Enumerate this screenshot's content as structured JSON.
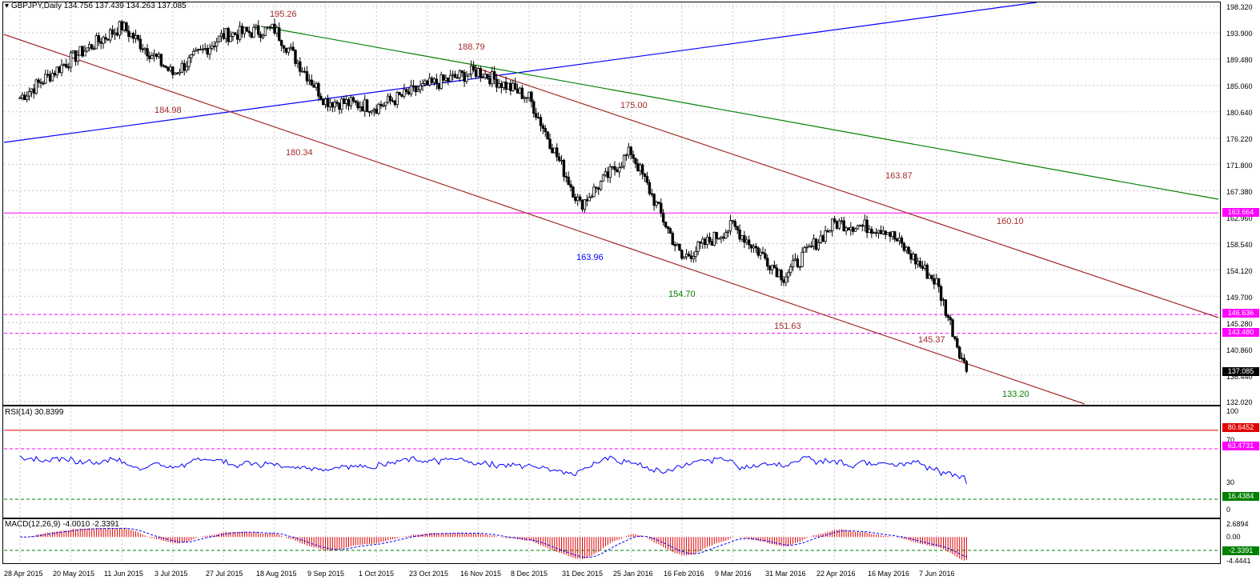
{
  "header": {
    "symbol": "GBPJPY,Daily",
    "ohlc": "134.756 137.439 134.263 137.085"
  },
  "price_axis": {
    "ticks": [
      "198.320",
      "193.900",
      "189.480",
      "185.060",
      "180.640",
      "176.220",
      "171.800",
      "167.380",
      "162.960",
      "158.540",
      "154.120",
      "149.700",
      "145.280",
      "140.860",
      "136.440",
      "132.020"
    ]
  },
  "price_boxes": {
    "resistance": "163.664",
    "level_1": "146.636",
    "level_2": "143.480",
    "last": "137.085"
  },
  "annotations": {
    "a1": "195.26",
    "a2": "188.79",
    "a3": "184.98",
    "a4": "180.34",
    "a5": "175.00",
    "a6": "163.87",
    "a7": "160.10",
    "a8": "163.96",
    "a9": "154.70",
    "a10": "151.63",
    "a11": "145.37",
    "a12": "133.20"
  },
  "rsi": {
    "label": "RSI(14) 30.8399",
    "axis": [
      "100",
      "70",
      "30",
      "0"
    ],
    "box_upper": "80.6452",
    "box_mid": "63.4731",
    "box_lower": "16.4384"
  },
  "macd": {
    "label": "MACD(12,26,9) -4.0010 -2.3391",
    "axis": [
      "2.6894",
      "0.00",
      "-4.4441"
    ],
    "box_signal": "-2.3391"
  },
  "dates": [
    "28 Apr 2015",
    "20 May 2015",
    "11 Jun 2015",
    "3 Jul 2015",
    "27 Jul 2015",
    "18 Aug 2015",
    "9 Sep 2015",
    "1 Oct 2015",
    "23 Oct 2015",
    "16 Nov 2015",
    "8 Dec 2015",
    "31 Dec 2015",
    "25 Jan 2016",
    "16 Feb 2016",
    "9 Mar 2016",
    "31 Mar 2016",
    "22 Apr 2016",
    "16 May 2016",
    "7 Jun 2016"
  ],
  "chart_data": {
    "type": "candlestick",
    "symbol": "GBPJPY",
    "timeframe": "Daily",
    "ylim": [
      132.02,
      198.32
    ],
    "key_levels": [
      163.664,
      146.636,
      143.48
    ],
    "close_path": [
      [
        "28 Apr 2015",
        183.0
      ],
      [
        "20 May 2015",
        189.5
      ],
      [
        "11 Jun 2015",
        195.0
      ],
      [
        "3 Jul 2015",
        187.0
      ],
      [
        "27 Jul 2015",
        193.5
      ],
      [
        "18 Aug 2015",
        194.5
      ],
      [
        "9 Sep 2015",
        182.5
      ],
      [
        "1 Oct 2015",
        181.5
      ],
      [
        "23 Oct 2015",
        185.0
      ],
      [
        "16 Nov 2015",
        187.5
      ],
      [
        "8 Dec 2015",
        183.0
      ],
      [
        "31 Dec 2015",
        165.0
      ],
      [
        "25 Jan 2016",
        174.0
      ],
      [
        "16 Feb 2016",
        156.0
      ],
      [
        "9 Mar 2016",
        161.5
      ],
      [
        "31 Mar 2016",
        153.0
      ],
      [
        "22 Apr 2016",
        162.0
      ],
      [
        "16 May 2016",
        161.0
      ],
      [
        "7 Jun 2016",
        152.0
      ],
      [
        "24 Jun 2016",
        137.085
      ]
    ],
    "rsi_last": 30.8399,
    "macd_last": -4.001,
    "macd_signal_last": -2.3391
  },
  "colors": {
    "up_candle": "#ffffff",
    "down_candle": "#000000",
    "resistance_line": "#ff00ff",
    "channel_line": "#a52a2a",
    "green_trend": "#008000",
    "blue_trend": "#0000ff",
    "rsi_line": "#0000ff"
  }
}
